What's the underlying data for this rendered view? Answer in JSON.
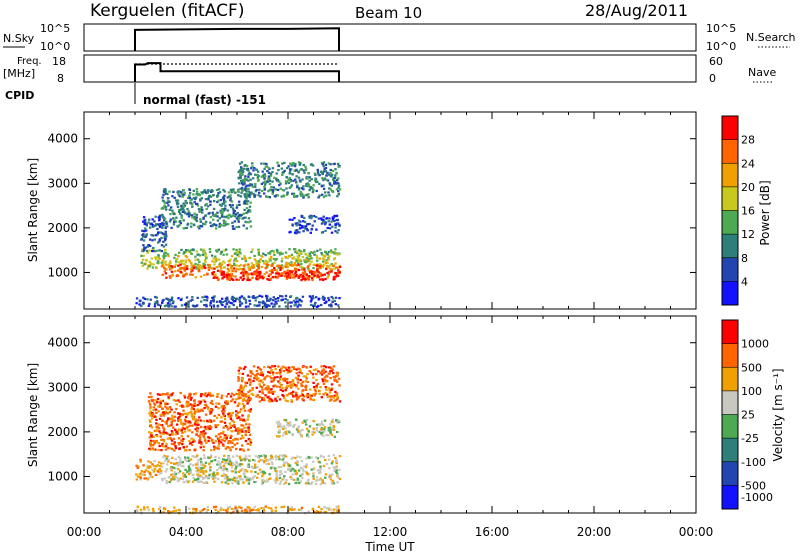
{
  "header": {
    "station": "Kerguelen (fitACF)",
    "beam": "Beam 10",
    "date": "28/Aug/2011"
  },
  "chart_data": [
    {
      "type": "line",
      "panel": "noise",
      "labels": {
        "left": "N.Sky",
        "right": "N.Search"
      },
      "left_ticks": [
        "10^5",
        "10^0"
      ],
      "right_ticks": [
        "10^5",
        "10^0"
      ],
      "x": [
        2.0,
        2.0,
        4.0,
        6.0,
        8.0,
        10.0,
        10.0
      ],
      "series": [
        {
          "values": [
            0.0,
            3.9,
            4.0,
            4.1,
            4.1,
            4.2,
            0.0
          ]
        }
      ],
      "ylim": [
        0,
        5
      ]
    },
    {
      "type": "line",
      "panel": "freq-nave",
      "labels": {
        "left_top": "Freq.",
        "left_unit": "[MHz]",
        "right": "Nave"
      },
      "left_ticks": [
        "18",
        "8"
      ],
      "right_ticks": [
        "60",
        "0"
      ],
      "x_freq": [
        2.0,
        2.0,
        2.4,
        2.5,
        3.0,
        3.0,
        10.0,
        10.0
      ],
      "freq": [
        8.0,
        14.5,
        14.5,
        15.0,
        15.0,
        12.0,
        12.0,
        8.0
      ],
      "x_nave": [
        2.0,
        10.0
      ],
      "nave": [
        40,
        40
      ],
      "ylim_freq": [
        8,
        18
      ],
      "ylim_nave": [
        0,
        60
      ]
    },
    {
      "type": "heatmap",
      "panel": "power",
      "cpid_label": "CPID",
      "cpid_text": "normal (fast) -151",
      "ylabel": "Slant Range [km]",
      "yticks": [
        1000,
        2000,
        3000,
        4000
      ],
      "ylim": [
        180,
        4600
      ],
      "colorbar": {
        "label": "Power [dB]",
        "ticks": [
          "4",
          "8",
          "12",
          "16",
          "20",
          "24",
          "28"
        ],
        "colors": [
          "#1212ff",
          "#2345b0",
          "#2e7f7a",
          "#4daa53",
          "#c8c81e",
          "#f0a000",
          "#ff6400",
          "#ff0000"
        ]
      },
      "regions": [
        {
          "x0": 2.2,
          "x1": 10.0,
          "y0": 1400,
          "y1": 1550,
          "level": 3
        },
        {
          "x0": 2.2,
          "x1": 10.0,
          "y0": 1100,
          "y1": 1400,
          "level": 4
        },
        {
          "x0": 3.0,
          "x1": 10.0,
          "y0": 900,
          "y1": 1200,
          "level": 6
        },
        {
          "x0": 5.0,
          "x1": 10.0,
          "y0": 850,
          "y1": 1050,
          "level": 7
        },
        {
          "x0": 2.0,
          "x1": 10.0,
          "y0": 250,
          "y1": 500,
          "level": 1
        },
        {
          "x0": 2.2,
          "x1": 3.2,
          "y0": 1500,
          "y1": 2300,
          "level": 1
        },
        {
          "x0": 3.0,
          "x1": 6.5,
          "y0": 2000,
          "y1": 2900,
          "level": 2
        },
        {
          "x0": 6.0,
          "x1": 10.0,
          "y0": 2700,
          "y1": 3500,
          "level": 2
        },
        {
          "x0": 8.0,
          "x1": 10.0,
          "y0": 1900,
          "y1": 2300,
          "level": 1
        }
      ]
    },
    {
      "type": "heatmap",
      "panel": "velocity",
      "ylabel": "Slant Range [km]",
      "yticks": [
        1000,
        2000,
        3000,
        4000
      ],
      "ylim": [
        180,
        4600
      ],
      "xlabel": "Time UT",
      "xticks": [
        "00:00",
        "04:00",
        "08:00",
        "12:00",
        "16:00",
        "20:00",
        "00:00"
      ],
      "xlim": [
        0,
        24
      ],
      "colorbar": {
        "label": "Velocity [m s⁻¹]",
        "ticks": [
          "1000",
          "500",
          "100",
          "25",
          "-25",
          "-100",
          "-500",
          "-1000"
        ],
        "colors": [
          "#1212ff",
          "#2345b0",
          "#2e7f7a",
          "#4daa53",
          "#c8c8c0",
          "#f0a000",
          "#ff6400",
          "#ff0000"
        ]
      },
      "regions": [
        {
          "x0": 3.0,
          "x1": 10.0,
          "y0": 850,
          "y1": 1500,
          "level": 4
        },
        {
          "x0": 2.0,
          "x1": 3.0,
          "y0": 950,
          "y1": 1400,
          "level": 5
        },
        {
          "x0": 2.5,
          "x1": 6.5,
          "y0": 1600,
          "y1": 2900,
          "level": 6
        },
        {
          "x0": 6.0,
          "x1": 10.0,
          "y0": 2700,
          "y1": 3500,
          "level": 6
        },
        {
          "x0": 7.5,
          "x1": 10.0,
          "y0": 1900,
          "y1": 2300,
          "level": 4
        },
        {
          "x0": 2.0,
          "x1": 10.0,
          "y0": 200,
          "y1": 350,
          "level": 5
        }
      ]
    }
  ]
}
